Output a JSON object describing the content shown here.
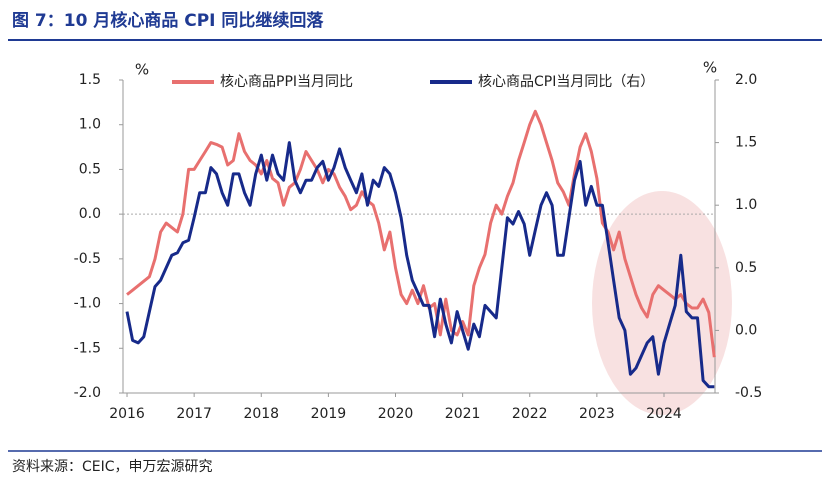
{
  "chart_data": {
    "type": "line",
    "title": "图 7：10 月核心商品 CPI 同比继续回落",
    "source": "资料来源：CEIC，申万宏源研究",
    "ylabel": "%",
    "y2label": "%",
    "x": [
      2016,
      2016.083,
      2016.167,
      2016.25,
      2016.333,
      2016.417,
      2016.5,
      2016.583,
      2016.667,
      2016.75,
      2016.833,
      2016.917,
      2017,
      2017.083,
      2017.167,
      2017.25,
      2017.333,
      2017.417,
      2017.5,
      2017.583,
      2017.667,
      2017.75,
      2017.833,
      2017.917,
      2018,
      2018.083,
      2018.167,
      2018.25,
      2018.333,
      2018.417,
      2018.5,
      2018.583,
      2018.667,
      2018.75,
      2018.833,
      2018.917,
      2019,
      2019.083,
      2019.167,
      2019.25,
      2019.333,
      2019.417,
      2019.5,
      2019.583,
      2019.667,
      2019.75,
      2019.833,
      2019.917,
      2020,
      2020.083,
      2020.167,
      2020.25,
      2020.333,
      2020.417,
      2020.5,
      2020.583,
      2020.667,
      2020.75,
      2020.833,
      2020.917,
      2021,
      2021.083,
      2021.167,
      2021.25,
      2021.333,
      2021.417,
      2021.5,
      2021.583,
      2021.667,
      2021.75,
      2021.833,
      2021.917,
      2022,
      2022.083,
      2022.167,
      2022.25,
      2022.333,
      2022.417,
      2022.5,
      2022.583,
      2022.667,
      2022.75,
      2022.833,
      2022.917,
      2023,
      2023.083,
      2023.167,
      2023.25,
      2023.333,
      2023.417,
      2023.5,
      2023.583,
      2023.667,
      2023.75,
      2023.833,
      2023.917,
      2024,
      2024.083,
      2024.167,
      2024.25,
      2024.333,
      2024.417,
      2024.5,
      2024.583,
      2024.667,
      2024.75
    ],
    "series": [
      {
        "name": "核心商品PPI当月同比",
        "color": "#e8706f",
        "values": [
          -0.9,
          -0.85,
          -0.8,
          -0.75,
          -0.7,
          -0.5,
          -0.2,
          -0.1,
          -0.15,
          -0.2,
          0.0,
          0.5,
          0.5,
          0.6,
          0.7,
          0.8,
          0.78,
          0.75,
          0.55,
          0.6,
          0.9,
          0.7,
          0.6,
          0.55,
          0.45,
          0.6,
          0.4,
          0.35,
          0.1,
          0.3,
          0.35,
          0.5,
          0.7,
          0.6,
          0.5,
          0.35,
          0.5,
          0.45,
          0.3,
          0.2,
          0.05,
          0.1,
          0.25,
          0.15,
          0.1,
          -0.1,
          -0.4,
          -0.2,
          -0.6,
          -0.9,
          -1.0,
          -0.85,
          -1.0,
          -0.8,
          -1.05,
          -1.0,
          -1.35,
          -0.95,
          -1.3,
          -1.35,
          -1.2,
          -1.35,
          -0.8,
          -0.6,
          -0.45,
          -0.1,
          0.1,
          0.0,
          0.2,
          0.35,
          0.6,
          0.8,
          1.0,
          1.15,
          1.0,
          0.8,
          0.6,
          0.35,
          0.25,
          0.1,
          0.45,
          0.75,
          0.9,
          0.7,
          0.4,
          -0.1,
          -0.2,
          -0.4,
          -0.2,
          -0.5,
          -0.7,
          -0.9,
          -1.05,
          -1.15,
          -0.9,
          -0.8,
          -0.85,
          -0.9,
          -0.95,
          -0.9,
          -1.0,
          -1.05,
          -1.05,
          -0.95,
          -1.1,
          -1.6
        ]
      },
      {
        "name": "核心商品CPI当月同比（右）",
        "color": "#172a8a",
        "axis": "y2",
        "values": [
          0.15,
          -0.08,
          -0.1,
          -0.05,
          0.15,
          0.35,
          0.4,
          0.5,
          0.6,
          0.62,
          0.7,
          0.72,
          0.9,
          1.1,
          1.1,
          1.3,
          1.25,
          1.1,
          1.0,
          1.25,
          1.25,
          1.1,
          1.0,
          1.25,
          1.4,
          1.2,
          1.4,
          1.25,
          1.2,
          1.5,
          1.2,
          1.1,
          1.2,
          1.2,
          1.3,
          1.35,
          1.2,
          1.3,
          1.45,
          1.3,
          1.2,
          1.1,
          1.25,
          1.0,
          1.2,
          1.15,
          1.3,
          1.25,
          1.1,
          0.9,
          0.6,
          0.4,
          0.3,
          0.2,
          0.2,
          -0.05,
          0.25,
          0.05,
          -0.1,
          0.15,
          0.0,
          -0.15,
          0.05,
          -0.05,
          0.2,
          0.15,
          0.1,
          0.5,
          0.9,
          0.85,
          0.95,
          0.85,
          0.6,
          0.8,
          1.0,
          1.1,
          1.0,
          0.6,
          0.6,
          0.9,
          1.2,
          1.35,
          1.0,
          1.15,
          1.0,
          1.0,
          0.7,
          0.4,
          0.1,
          0.0,
          -0.35,
          -0.3,
          -0.2,
          -0.1,
          -0.05,
          -0.35,
          -0.1,
          0.05,
          0.2,
          0.6,
          0.15,
          0.1,
          0.1,
          -0.4,
          -0.45,
          -0.45
        ]
      }
    ],
    "xlim": [
      2015.94,
      2024.76
    ],
    "xticks": [
      2016,
      2017,
      2018,
      2019,
      2020,
      2021,
      2022,
      2023,
      2024
    ],
    "ylim": [
      -2,
      1.5
    ],
    "yticks": [
      {
        "value": -2,
        "label": "-2.0"
      },
      -1.5,
      {
        "value": -1,
        "label": "-1.0"
      },
      -0.5,
      {
        "value": 0,
        "label": "0.0"
      },
      0.5,
      {
        "value": 1,
        "label": "1.0"
      },
      1.5
    ],
    "y2lim": [
      -0.5,
      2
    ],
    "y2ticks": [
      -0.5,
      {
        "value": 0,
        "label": "0.0"
      },
      0.5,
      {
        "value": 1,
        "label": "1.0"
      },
      1.5,
      {
        "value": 2,
        "label": "2.0"
      }
    ],
    "legend": "top"
  }
}
